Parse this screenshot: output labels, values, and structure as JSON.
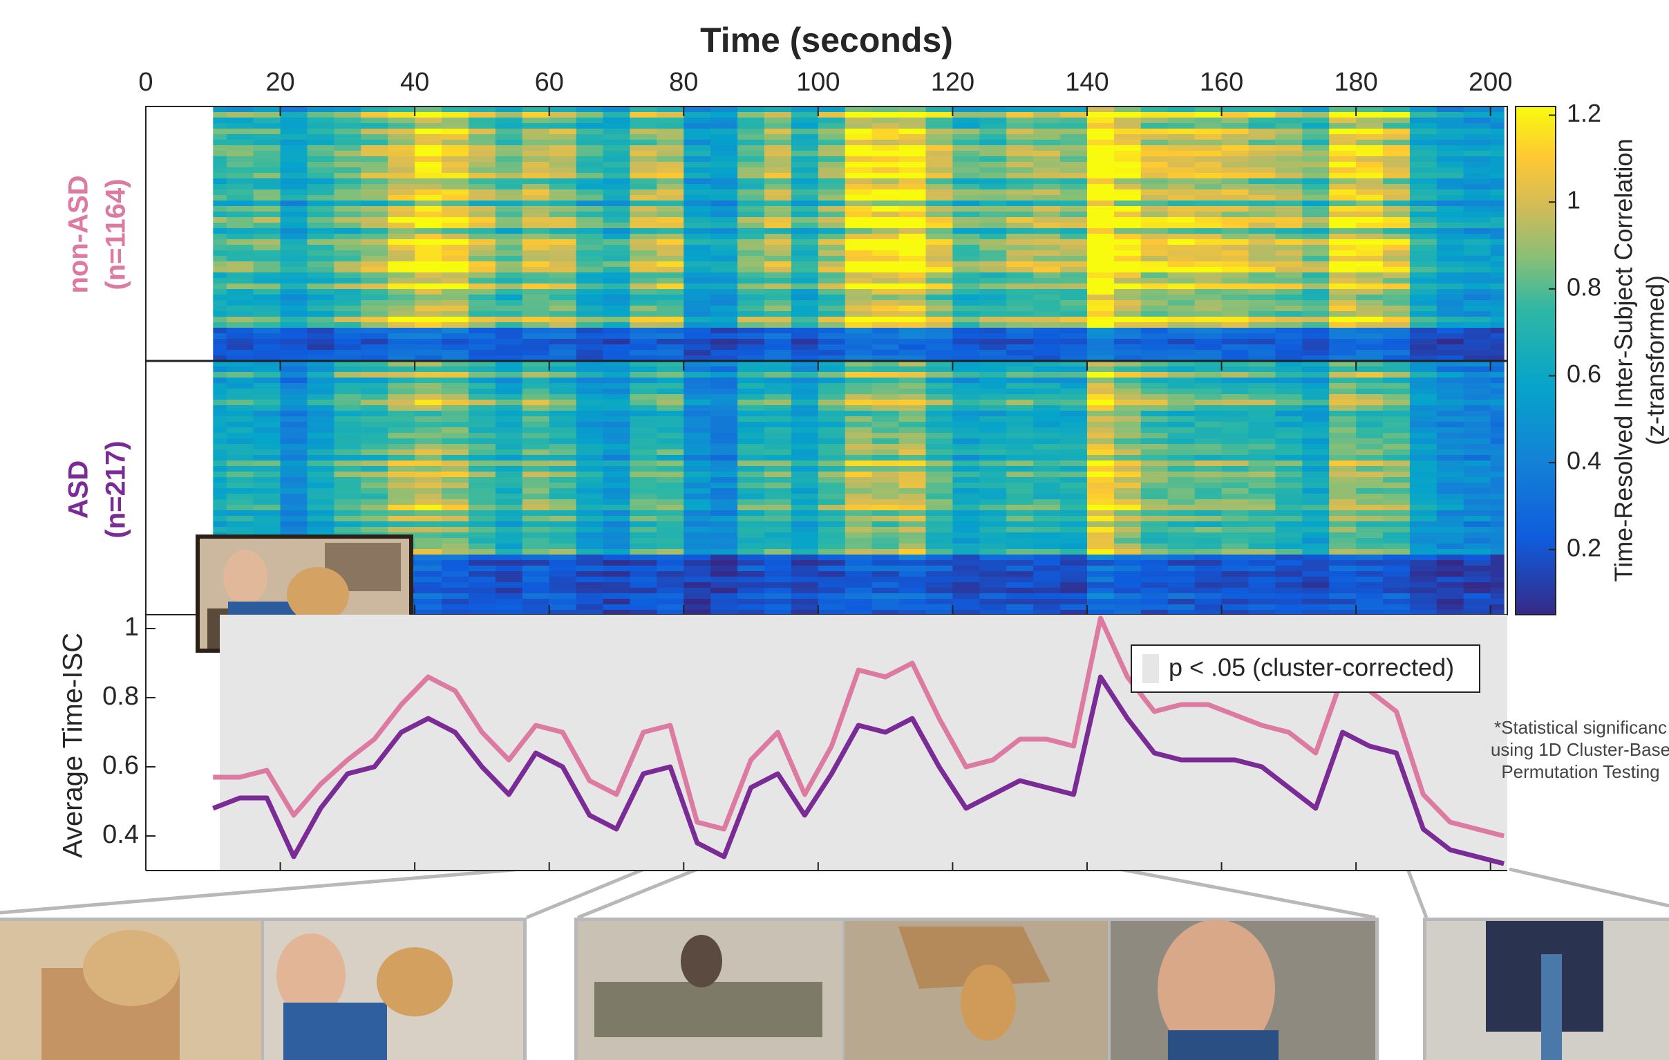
{
  "chart_data": [
    {
      "type": "heatmap",
      "xlabel": "Time (seconds)",
      "xlim": [
        0,
        202.5
      ],
      "xticks": [
        0,
        20,
        40,
        60,
        80,
        100,
        120,
        140,
        160,
        180,
        200
      ],
      "groups": [
        {
          "name": "non-ASD",
          "n_label": "(n=1164)"
        },
        {
          "name": "ASD",
          "n_label": "(n=217)"
        }
      ],
      "colorbar": {
        "label": [
          "Time-Resolved Inter-Subject Correlation",
          "(z-transformed)"
        ],
        "clim": [
          0.05,
          1.22
        ],
        "ticks": [
          0.2,
          0.4,
          0.6,
          0.8,
          1,
          1.2
        ]
      }
    },
    {
      "type": "line",
      "ylabel": "Average Time-ISC",
      "xlim": [
        0,
        202.5
      ],
      "ylim": [
        0.3,
        1.04
      ],
      "yticks": [
        0.4,
        0.6,
        0.8,
        1
      ],
      "x": [
        10,
        14,
        18,
        22,
        26,
        30,
        34,
        38,
        42,
        46,
        50,
        54,
        58,
        62,
        66,
        70,
        74,
        78,
        82,
        86,
        90,
        94,
        98,
        102,
        106,
        110,
        114,
        118,
        122,
        126,
        130,
        134,
        138,
        142,
        146,
        150,
        154,
        158,
        162,
        166,
        170,
        174,
        178,
        182,
        186,
        190,
        194,
        198,
        202
      ],
      "series": [
        {
          "name": "non-ASD",
          "color": "#dc7aa1",
          "values": [
            0.57,
            0.57,
            0.59,
            0.46,
            0.55,
            0.62,
            0.68,
            0.78,
            0.86,
            0.82,
            0.7,
            0.62,
            0.72,
            0.7,
            0.56,
            0.52,
            0.7,
            0.72,
            0.44,
            0.42,
            0.62,
            0.7,
            0.52,
            0.66,
            0.88,
            0.86,
            0.9,
            0.74,
            0.6,
            0.62,
            0.68,
            0.68,
            0.66,
            1.03,
            0.86,
            0.76,
            0.78,
            0.78,
            0.75,
            0.72,
            0.7,
            0.64,
            0.86,
            0.82,
            0.76,
            0.52,
            0.44,
            0.42,
            0.4
          ]
        },
        {
          "name": "ASD",
          "color": "#7a2b95",
          "values": [
            0.48,
            0.51,
            0.51,
            0.34,
            0.48,
            0.58,
            0.6,
            0.7,
            0.74,
            0.7,
            0.6,
            0.52,
            0.64,
            0.6,
            0.46,
            0.42,
            0.58,
            0.6,
            0.38,
            0.34,
            0.54,
            0.58,
            0.46,
            0.58,
            0.72,
            0.7,
            0.74,
            0.6,
            0.48,
            0.52,
            0.56,
            0.54,
            0.52,
            0.86,
            0.74,
            0.64,
            0.62,
            0.62,
            0.62,
            0.6,
            0.54,
            0.48,
            0.7,
            0.66,
            0.64,
            0.42,
            0.36,
            0.34,
            0.32
          ]
        }
      ],
      "significance": {
        "label": "p < .05 (cluster-corrected)",
        "range": [
          11,
          202.5
        ],
        "color": "#e6e6e7"
      },
      "note": [
        "*Statistical significanc",
        "using 1D Cluster-Base",
        "Permutation Testing"
      ]
    }
  ]
}
